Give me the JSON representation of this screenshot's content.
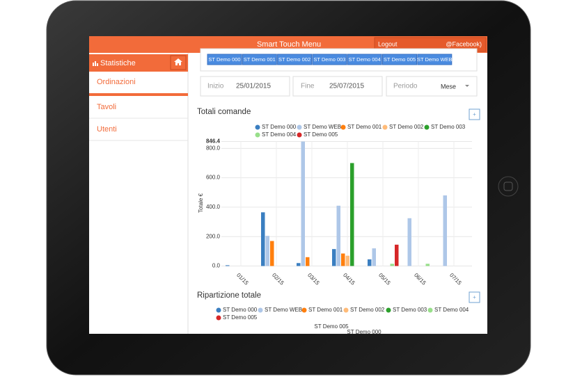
{
  "header": {
    "title": "Smart Touch Menu",
    "logout": "Logout",
    "account": "@Facebook)"
  },
  "sidebar": {
    "title": "Statistiche",
    "items": [
      "Ordinazioni",
      "Tavoli",
      "Utenti"
    ]
  },
  "store_buttons": [
    "ST Demo 000",
    "ST Demo 001",
    "ST Demo 002",
    "ST Demo 003",
    "ST Demo 004",
    "ST Demo 005",
    "ST Demo WEB"
  ],
  "filters": {
    "start_label": "Inizio",
    "start": "25/01/2015",
    "end_label": "Fine",
    "end": "25/07/2015",
    "period_label": "Periodo",
    "period": "Mese"
  },
  "chart_data": {
    "type": "bar",
    "title": "Totali comande",
    "y_label": "Totale €",
    "categories": [
      "01/15",
      "02/15",
      "03/15",
      "04/15",
      "05/15",
      "06/15",
      "07/15"
    ],
    "ylim": [
      0,
      846.4
    ],
    "yticks": [
      {
        "value": 0,
        "label": "0.0"
      },
      {
        "value": 200,
        "label": "200.0"
      },
      {
        "value": 400,
        "label": "400.0"
      },
      {
        "value": 600,
        "label": "600.0"
      },
      {
        "value": 800,
        "label": "800.0"
      },
      846.4
    ],
    "grid": true,
    "series": [
      {
        "name": "ST Demo 000",
        "color": "#3b7fc1",
        "values": [
          5,
          365,
          20,
          115,
          45,
          0,
          0
        ]
      },
      {
        "name": "ST Demo WEB",
        "color": "#aec7e8",
        "values": [
          0,
          205,
          846.4,
          410,
          120,
          325,
          480
        ]
      },
      {
        "name": "ST Demo 001",
        "color": "#ff7f0e",
        "values": [
          0,
          170,
          60,
          85,
          0,
          0,
          0
        ]
      },
      {
        "name": "ST Demo 002",
        "color": "#ffbb78",
        "values": [
          0,
          0,
          0,
          70,
          0,
          0,
          0
        ]
      },
      {
        "name": "ST Demo 003",
        "color": "#2ca02c",
        "values": [
          0,
          0,
          0,
          700,
          0,
          0,
          0
        ]
      },
      {
        "name": "ST Demo 004",
        "color": "#98df8a",
        "values": [
          0,
          0,
          0,
          0,
          15,
          15,
          0
        ]
      },
      {
        "name": "ST Demo 005",
        "color": "#d62728",
        "values": [
          0,
          0,
          0,
          0,
          145,
          0,
          0
        ]
      }
    ]
  },
  "pie_section": {
    "title": "Ripartizione totale",
    "legend": [
      "ST Demo 000",
      "ST Demo WEB",
      "ST Demo 001",
      "ST Demo 002",
      "ST Demo 003",
      "ST Demo 004",
      "ST Demo 005"
    ],
    "slice_labels": [
      "ST Demo 005",
      "ST Demo 000"
    ]
  }
}
